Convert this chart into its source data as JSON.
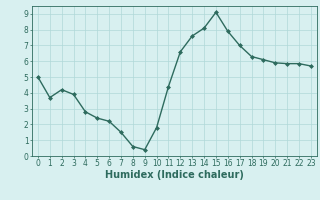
{
  "x": [
    0,
    1,
    2,
    3,
    4,
    5,
    6,
    7,
    8,
    9,
    10,
    11,
    12,
    13,
    14,
    15,
    16,
    17,
    18,
    19,
    20,
    21,
    22,
    23
  ],
  "y": [
    5.0,
    3.7,
    4.2,
    3.9,
    2.8,
    2.4,
    2.2,
    1.5,
    0.6,
    0.4,
    1.8,
    4.4,
    6.6,
    7.6,
    8.1,
    9.1,
    7.9,
    7.0,
    6.3,
    6.1,
    5.9,
    5.85,
    5.85,
    5.7
  ],
  "xlabel": "Humidex (Indice chaleur)",
  "xlim": [
    -0.5,
    23.5
  ],
  "ylim": [
    0,
    9.5
  ],
  "yticks": [
    0,
    1,
    2,
    3,
    4,
    5,
    6,
    7,
    8,
    9
  ],
  "xticks": [
    0,
    1,
    2,
    3,
    4,
    5,
    6,
    7,
    8,
    9,
    10,
    11,
    12,
    13,
    14,
    15,
    16,
    17,
    18,
    19,
    20,
    21,
    22,
    23
  ],
  "line_color": "#2e6b5e",
  "bg_color": "#d8f0f0",
  "grid_color": "#b0d8d8",
  "marker_size": 2.0,
  "linewidth": 1.0,
  "tick_fontsize": 5.5,
  "xlabel_fontsize": 7.0
}
